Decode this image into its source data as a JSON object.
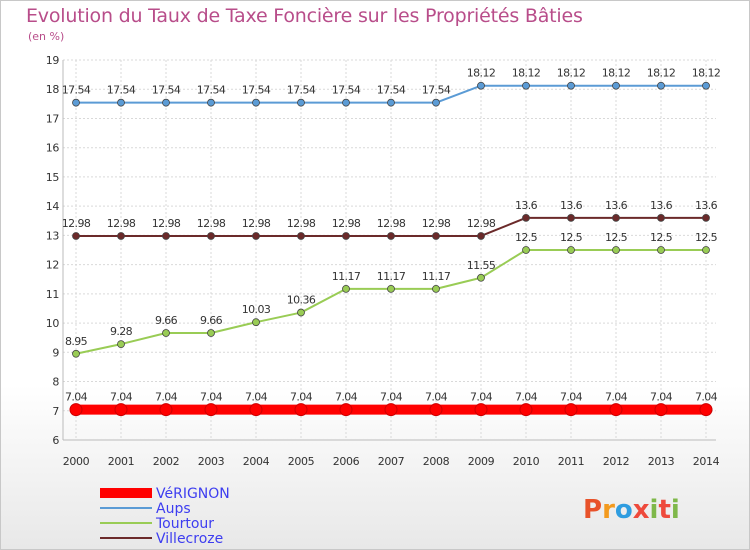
{
  "header": {
    "title": "Evolution du Taux de Taxe Foncière sur les Propriétés Bâties",
    "subtitle": "(en %)"
  },
  "logo": {
    "text": "Proxiti"
  },
  "chart_data": {
    "type": "line",
    "title": "Evolution du Taux de Taxe Foncière sur les Propriétés Bâties",
    "subtitle": "(en %)",
    "categories": [
      "2000",
      "2001",
      "2002",
      "2003",
      "2004",
      "2005",
      "2006",
      "2007",
      "2008",
      "2009",
      "2010",
      "2011",
      "2012",
      "2013",
      "2014"
    ],
    "ylim": [
      6,
      19
    ],
    "yticks": [
      6,
      7,
      8,
      9,
      10,
      11,
      12,
      13,
      14,
      15,
      16,
      17,
      18,
      19
    ],
    "grid": true,
    "legend_position": "bottom-left",
    "series": [
      {
        "name": "VéRIGNON",
        "color": "#ff0000",
        "values": [
          7.04,
          7.04,
          7.04,
          7.04,
          7.04,
          7.04,
          7.04,
          7.04,
          7.04,
          7.04,
          7.04,
          7.04,
          7.04,
          7.04,
          7.04
        ],
        "labels": [
          "7.04",
          "7.04",
          "7.04",
          "7.04",
          "7.04",
          "7.04",
          "7.04",
          "7.04",
          "7.04",
          "7.04",
          "7.04",
          "7.04",
          "7.04",
          "7.04",
          "7.04"
        ]
      },
      {
        "name": "Aups",
        "color": "#5b9bd5",
        "values": [
          17.54,
          17.54,
          17.54,
          17.54,
          17.54,
          17.54,
          17.54,
          17.54,
          17.54,
          18.12,
          18.12,
          18.12,
          18.12,
          18.12,
          18.12
        ],
        "labels": [
          "17.54",
          "17.54",
          "17.54",
          "17.54",
          "17.54",
          "17.54",
          "17.54",
          "17.54",
          "17.54",
          "18.12",
          "18.12",
          "18.12",
          "18.12",
          "18.12",
          "18.12"
        ]
      },
      {
        "name": "Tourtour",
        "color": "#99cc55",
        "values": [
          8.95,
          9.28,
          9.66,
          9.66,
          10.03,
          10.36,
          11.17,
          11.17,
          11.17,
          11.55,
          12.5,
          12.5,
          12.5,
          12.5,
          12.5
        ],
        "labels": [
          "8.95",
          "9.28",
          "9.66",
          "9.66",
          "10.03",
          "10.36",
          "11.17",
          "11.17",
          "11.17",
          "11.55",
          "12.5",
          "12.5",
          "12.5",
          "12.5",
          "12.5"
        ]
      },
      {
        "name": "Villecroze",
        "color": "#6b2a2a",
        "values": [
          12.98,
          12.98,
          12.98,
          12.98,
          12.98,
          12.98,
          12.98,
          12.98,
          12.98,
          12.98,
          13.6,
          13.6,
          13.6,
          13.6,
          13.6
        ],
        "labels": [
          "12.98",
          "12.98",
          "12.98",
          "12.98",
          "12.98",
          "12.98",
          "12.98",
          "12.98",
          "12.98",
          "12.98",
          "13.6",
          "13.6",
          "13.6",
          "13.6",
          "13.6"
        ]
      }
    ]
  }
}
